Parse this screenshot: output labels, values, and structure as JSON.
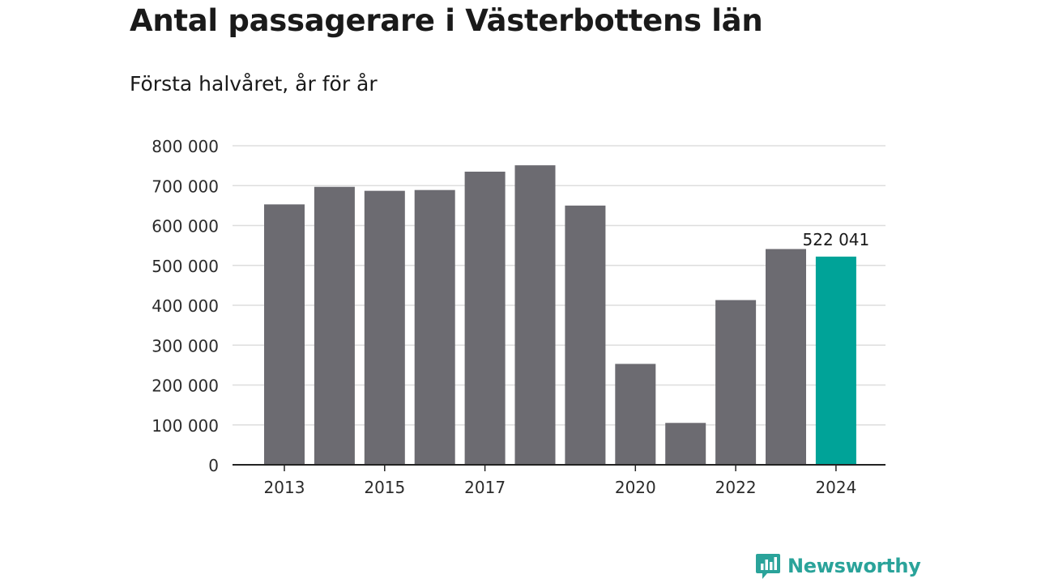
{
  "header": {
    "title": "Antal passagerare i Västerbottens län",
    "subtitle": "Första halvåret, år för år"
  },
  "brand": {
    "name": "Newsworthy",
    "icon": "newsworthy-logo-icon",
    "color": "#2aa39a"
  },
  "colors": {
    "bar": "#6c6b71",
    "highlight": "#00a398",
    "grid": "#dddddd",
    "axis": "#222222",
    "text": "#2b2b2b"
  },
  "chart_data": {
    "type": "bar",
    "categories": [
      "2013",
      "2014",
      "2015",
      "2016",
      "2017",
      "2018",
      "2019",
      "2020",
      "2021",
      "2022",
      "2023",
      "2024"
    ],
    "values": [
      653000,
      697000,
      687000,
      689000,
      735000,
      751000,
      650000,
      253000,
      105000,
      413000,
      541000,
      522041
    ],
    "highlight_index": 11,
    "highlight_label": "522 041",
    "x_tick_labels": [
      "2013",
      "",
      "2015",
      "",
      "2017",
      "",
      "",
      "2020",
      "",
      "2022",
      "",
      "2024"
    ],
    "y_ticks": [
      0,
      100000,
      200000,
      300000,
      400000,
      500000,
      600000,
      700000,
      800000
    ],
    "y_tick_labels": [
      "0",
      "100 000",
      "200 000",
      "300 000",
      "400 000",
      "500 000",
      "600 000",
      "700 000",
      "800 000"
    ],
    "ylim": [
      0,
      800000
    ],
    "grid": true,
    "legend": "none",
    "xlabel": "",
    "ylabel": ""
  }
}
